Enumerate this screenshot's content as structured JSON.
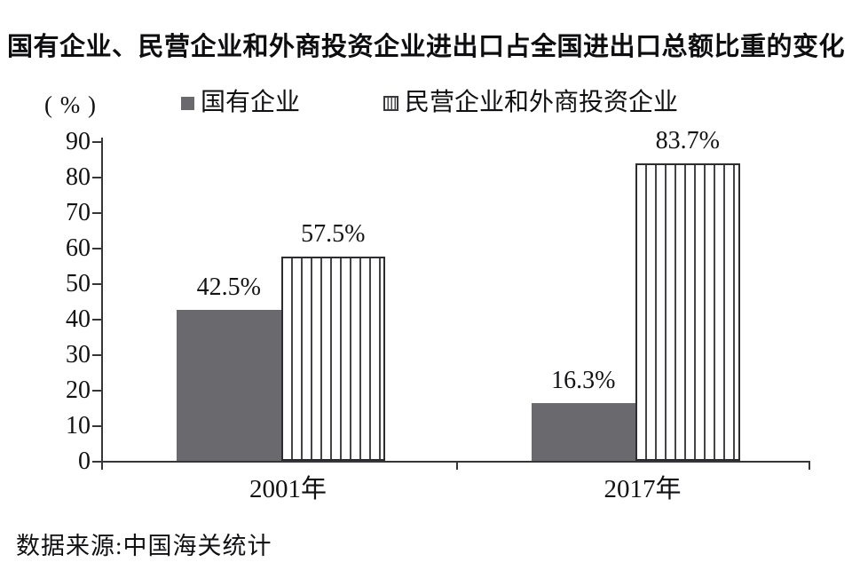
{
  "colors": {
    "solid_bar": "#69696e",
    "stripe_line": "#434348",
    "striped_border": "#2c2c31",
    "axis": "#36363a",
    "text": "#111114"
  },
  "chart_data": {
    "type": "bar",
    "title": "国有企业、民营企业和外商投资企业进出口占全国进出口总额比重的变化",
    "ylabel": "( % )",
    "categories": [
      "2001年",
      "2017年"
    ],
    "series": [
      {
        "name": "国有企业",
        "pattern": "solid-gray",
        "values": [
          42.5,
          16.3
        ],
        "value_labels": [
          "42.5%",
          "16.3%"
        ]
      },
      {
        "name": "民营企业和外商投资企业",
        "pattern": "vertical-stripes",
        "values": [
          57.5,
          83.7
        ],
        "value_labels": [
          "57.5%",
          "83.7%"
        ]
      }
    ],
    "ylim": [
      0,
      90
    ],
    "yticks": [
      0,
      10,
      20,
      30,
      40,
      50,
      60,
      70,
      80,
      90
    ],
    "grid": false,
    "legend_position": "top",
    "source": "数据来源:中国海关统计"
  }
}
